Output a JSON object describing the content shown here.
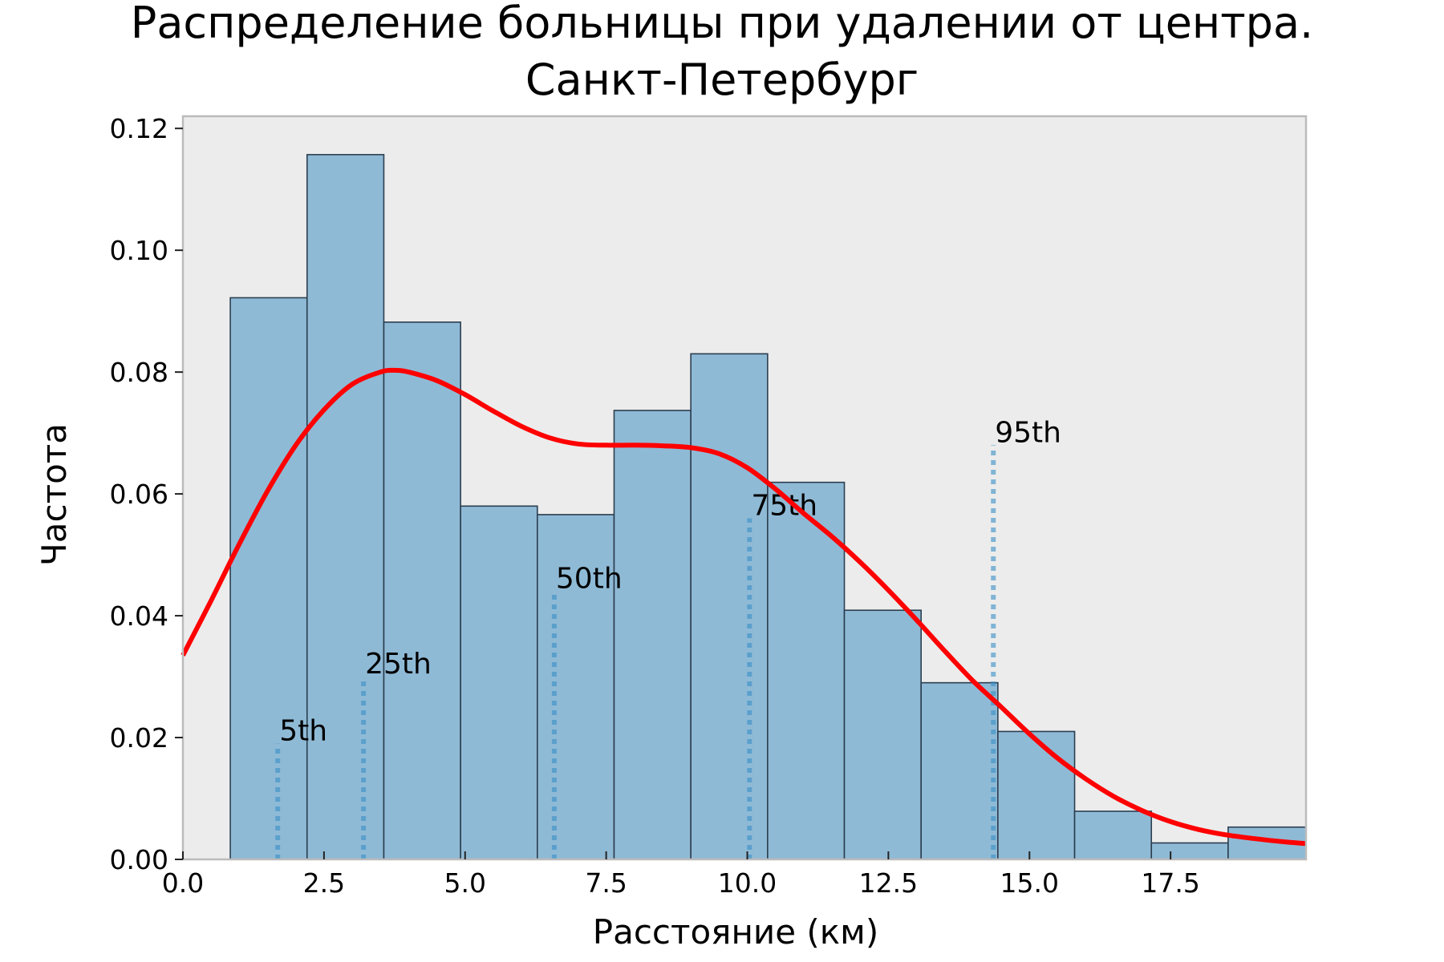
{
  "chart_data": {
    "type": "bar",
    "title": [
      "Распределение больницы при удалении от центра.",
      "Санкт-Петербург"
    ],
    "xlabel": "Расстояние (км)",
    "ylabel": "Частота",
    "xlim": [
      0,
      19.9
    ],
    "ylim": [
      0,
      0.122
    ],
    "xticks": [
      0.0,
      2.5,
      5.0,
      7.5,
      10.0,
      12.5,
      15.0,
      17.5
    ],
    "xtick_labels": [
      "0.0",
      "2.5",
      "5.0",
      "7.5",
      "10.0",
      "12.5",
      "15.0",
      "17.5"
    ],
    "yticks": [
      0.0,
      0.02,
      0.04,
      0.06,
      0.08,
      0.1,
      0.12
    ],
    "ytick_labels": [
      "0.00",
      "0.02",
      "0.04",
      "0.06",
      "0.08",
      "0.10",
      "0.12"
    ],
    "grid": false,
    "bins": [
      {
        "x0": 0.84,
        "x1": 2.2,
        "value": 0.0922
      },
      {
        "x0": 2.2,
        "x1": 3.56,
        "value": 0.1157
      },
      {
        "x0": 3.56,
        "x1": 4.92,
        "value": 0.0882
      },
      {
        "x0": 4.92,
        "x1": 6.28,
        "value": 0.058
      },
      {
        "x0": 6.28,
        "x1": 7.64,
        "value": 0.0566
      },
      {
        "x0": 7.64,
        "x1": 9.0,
        "value": 0.0737
      },
      {
        "x0": 9.0,
        "x1": 10.36,
        "value": 0.083
      },
      {
        "x0": 10.36,
        "x1": 11.72,
        "value": 0.0619
      },
      {
        "x0": 11.72,
        "x1": 13.08,
        "value": 0.0409
      },
      {
        "x0": 13.08,
        "x1": 14.44,
        "value": 0.029
      },
      {
        "x0": 14.44,
        "x1": 15.8,
        "value": 0.021
      },
      {
        "x0": 15.8,
        "x1": 17.16,
        "value": 0.0079
      },
      {
        "x0": 17.16,
        "x1": 18.52,
        "value": 0.0027
      },
      {
        "x0": 18.52,
        "x1": 19.9,
        "value": 0.0053
      }
    ],
    "kde": {
      "x": [
        0.0,
        0.5,
        1.0,
        1.5,
        2.0,
        2.5,
        3.0,
        3.5,
        3.75,
        4.0,
        4.5,
        5.0,
        5.5,
        6.0,
        6.5,
        7.0,
        7.5,
        8.0,
        8.5,
        9.0,
        9.5,
        10.0,
        10.5,
        11.0,
        11.5,
        12.0,
        12.5,
        13.0,
        13.5,
        14.0,
        14.5,
        15.0,
        15.5,
        16.0,
        16.5,
        17.0,
        17.5,
        18.0,
        18.5,
        19.0,
        19.5,
        19.9
      ],
      "y": [
        0.0335,
        0.0425,
        0.0518,
        0.0605,
        0.068,
        0.0738,
        0.078,
        0.08,
        0.0803,
        0.08,
        0.0786,
        0.0763,
        0.0736,
        0.0711,
        0.0692,
        0.0682,
        0.068,
        0.068,
        0.0679,
        0.0676,
        0.0666,
        0.0643,
        0.0608,
        0.0568,
        0.053,
        0.0488,
        0.0442,
        0.0393,
        0.0342,
        0.0293,
        0.025,
        0.0206,
        0.0166,
        0.0132,
        0.0103,
        0.008,
        0.0062,
        0.0049,
        0.004,
        0.0034,
        0.0029,
        0.0026
      ],
      "color": "#ff0000"
    },
    "percentiles": [
      {
        "label": "5th",
        "x": 1.68,
        "y_top": 0.019
      },
      {
        "label": "25th",
        "x": 3.2,
        "y_top": 0.03
      },
      {
        "label": "50th",
        "x": 6.58,
        "y_top": 0.044
      },
      {
        "label": "75th",
        "x": 10.04,
        "y_top": 0.056
      },
      {
        "label": "95th",
        "x": 14.36,
        "y_top": 0.068
      }
    ],
    "colors": {
      "bar_fill": "#8fbad6",
      "bar_edge": "#2c3e4f",
      "plot_bg": "#ececec",
      "percentile_line": "#3a8fc7",
      "frame": "#bbbbbb"
    }
  }
}
